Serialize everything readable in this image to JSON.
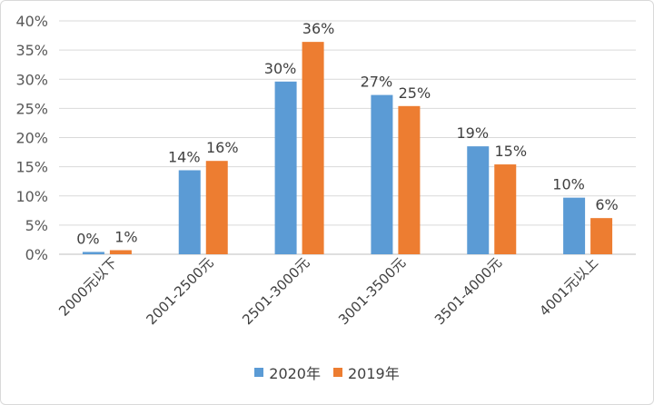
{
  "chart_data": {
    "type": "bar",
    "categories": [
      "2000元以下",
      "2001-2500元",
      "2501-3000元",
      "3001-3500元",
      "3501-4000元",
      "4001元以上"
    ],
    "series": [
      {
        "name": "2020年",
        "values": [
          0.4,
          14.4,
          29.6,
          27.3,
          18.5,
          9.7
        ],
        "labels": [
          "0%",
          "14%",
          "30%",
          "27%",
          "19%",
          "10%"
        ],
        "color": "#5b9bd5"
      },
      {
        "name": "2019年",
        "values": [
          0.7,
          16.0,
          36.4,
          25.4,
          15.4,
          6.2
        ],
        "labels": [
          "1%",
          "16%",
          "36%",
          "25%",
          "15%",
          "6%"
        ],
        "color": "#ed7d31"
      }
    ],
    "yticks": [
      "0%",
      "5%",
      "10%",
      "15%",
      "20%",
      "25%",
      "30%",
      "35%",
      "40%"
    ],
    "ylim": [
      0,
      40
    ],
    "grid": true,
    "legend_position": "bottom"
  }
}
